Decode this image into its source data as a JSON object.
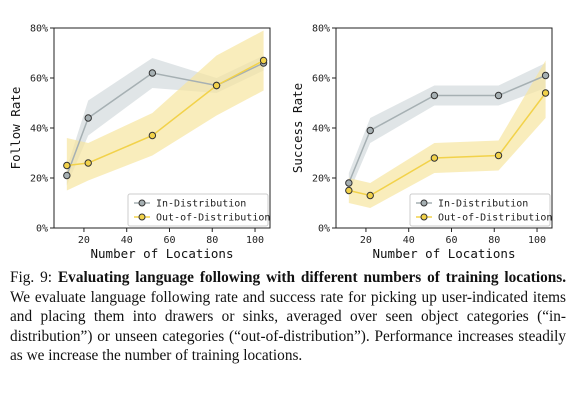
{
  "chart_data": [
    {
      "type": "line",
      "xlabel": "Number of Locations",
      "ylabel": "Follow Rate",
      "xlim": [
        6,
        107
      ],
      "ylim": [
        0,
        80
      ],
      "xticks": [
        "20",
        "40",
        "60",
        "80",
        "100"
      ],
      "yticks": [
        "0%",
        "20%",
        "40%",
        "60%",
        "80%"
      ],
      "grid": false,
      "legend": "bottom-right",
      "series": [
        {
          "name": "In-Distribution",
          "color": "#a6b0b3",
          "band_color": "#c7d0d3",
          "x": [
            12,
            22,
            52,
            82,
            104
          ],
          "y": [
            21,
            44,
            62,
            57,
            66
          ],
          "lower": [
            17,
            37,
            56,
            54,
            63
          ],
          "upper": [
            24,
            51,
            68,
            60,
            69
          ]
        },
        {
          "name": "Out-of-Distribution",
          "color": "#f2d24a",
          "band_color": "#f7e6a0",
          "x": [
            12,
            22,
            52,
            82,
            104
          ],
          "y": [
            25,
            26,
            37,
            57,
            67
          ],
          "lower": [
            15,
            19,
            29,
            45,
            55
          ],
          "upper": [
            36,
            34,
            46,
            69,
            79
          ]
        }
      ]
    },
    {
      "type": "line",
      "xlabel": "Number of Locations",
      "ylabel": "Success Rate",
      "xlim": [
        6,
        107
      ],
      "ylim": [
        0,
        80
      ],
      "xticks": [
        "20",
        "40",
        "60",
        "80",
        "100"
      ],
      "yticks": [
        "0%",
        "20%",
        "40%",
        "60%",
        "80%"
      ],
      "grid": false,
      "legend": "bottom-right",
      "series": [
        {
          "name": "In-Distribution",
          "color": "#a6b0b3",
          "band_color": "#c7d0d3",
          "x": [
            12,
            22,
            52,
            82,
            104
          ],
          "y": [
            18,
            39,
            53,
            53,
            61
          ],
          "lower": [
            14,
            34,
            49,
            49,
            56
          ],
          "upper": [
            22,
            44,
            57,
            57,
            66
          ]
        },
        {
          "name": "Out-of-Distribution",
          "color": "#f2d24a",
          "band_color": "#f7e6a0",
          "x": [
            12,
            22,
            52,
            82,
            104
          ],
          "y": [
            15,
            13,
            28,
            29,
            54
          ],
          "lower": [
            10,
            8,
            22,
            23,
            44
          ],
          "upper": [
            20,
            18,
            34,
            35,
            67
          ]
        }
      ]
    }
  ],
  "caption": {
    "fig_label": "Fig. 9:",
    "bold_title": "Evaluating language following with different numbers of training locations.",
    "body": "We evaluate language following rate and success rate for picking up user-indicated items and placing them into drawers or sinks, averaged over seen object categories (“in-distribution”) or unseen categories (“out-of-distribution”). Performance increases steadily as we increase the number of training locations."
  }
}
